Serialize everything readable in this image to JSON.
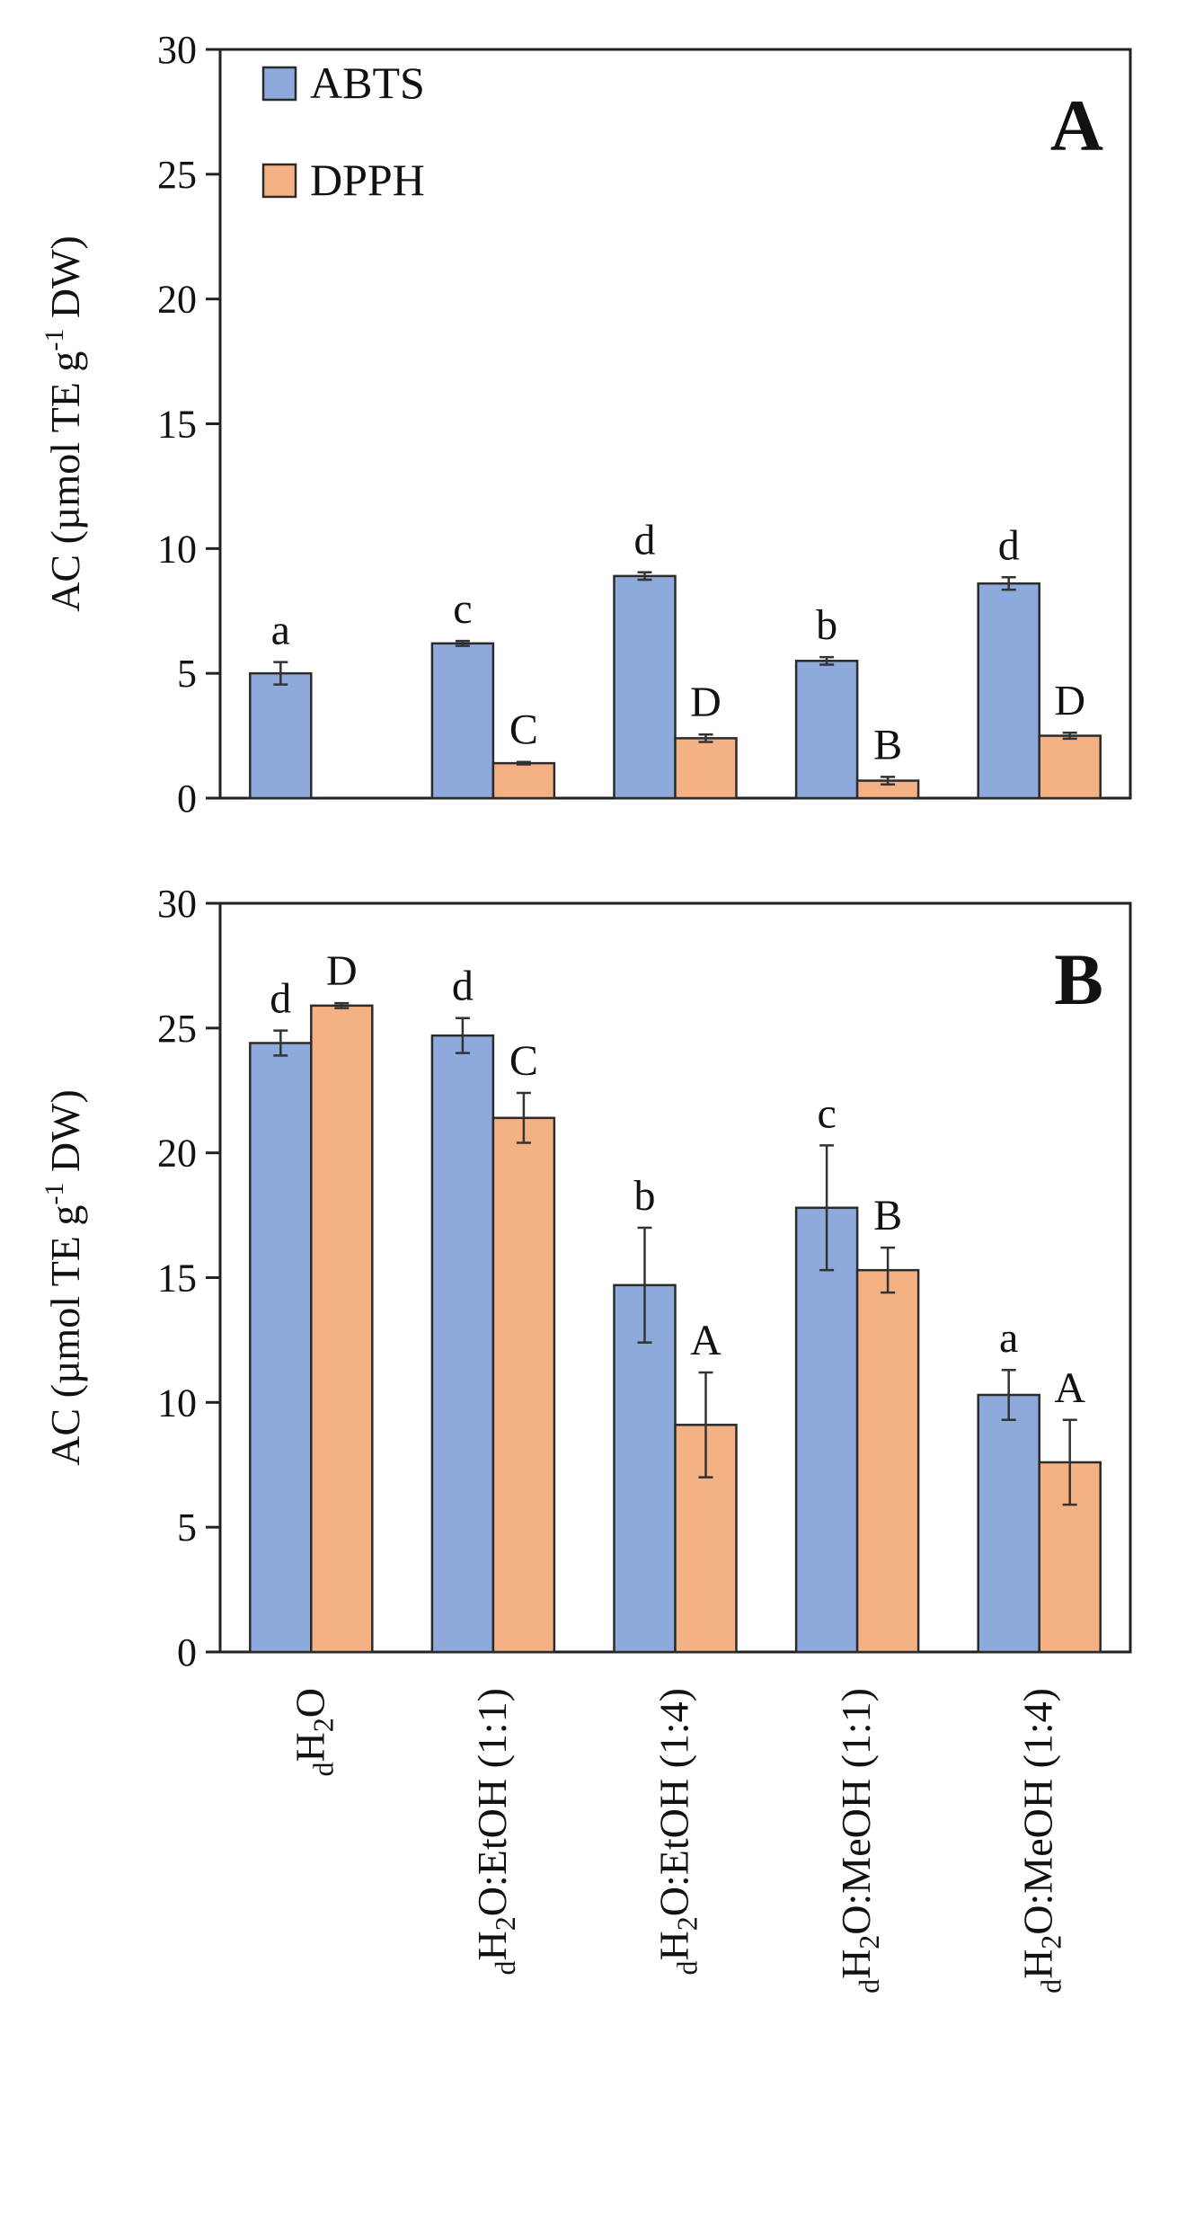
{
  "chart_data": [
    {
      "type": "bar",
      "panel_label": "A",
      "ylabel": "AC (µmol TE g-1 DW)",
      "ylabel_parts": {
        "pre": "AC (µmol TE g",
        "sup": "-1",
        "post": " DW)"
      },
      "ylim": [
        0,
        30
      ],
      "yticks": [
        "0",
        "5",
        "10",
        "15",
        "20",
        "25",
        "30"
      ],
      "categories": [
        "dH2O",
        "dH2O:EtOH (1:1)",
        "dH2O:EtOH (1:4)",
        "dH2O:MeOH (1:1)",
        "dH2O:MeOH (1:4)"
      ],
      "legend": [
        "ABTS",
        "DPPH"
      ],
      "legend_position": "top-left",
      "series": [
        {
          "name": "ABTS",
          "color": "#8EA9DB",
          "values": [
            5.0,
            6.2,
            8.9,
            5.5,
            8.6
          ],
          "errors": [
            0.45,
            0.1,
            0.15,
            0.15,
            0.25
          ],
          "letters": [
            "a",
            "c",
            "d",
            "b",
            "d"
          ]
        },
        {
          "name": "DPPH",
          "color": "#F4B183",
          "values": [
            null,
            1.4,
            2.4,
            0.7,
            2.5
          ],
          "errors": [
            0,
            0.05,
            0.15,
            0.15,
            0.12
          ],
          "letters": [
            "",
            "C",
            "D",
            "B",
            "D"
          ]
        }
      ]
    },
    {
      "type": "bar",
      "panel_label": "B",
      "ylabel": "AC (µmol TE g-1 DW)",
      "ylabel_parts": {
        "pre": "AC (µmol TE g",
        "sup": "-1",
        "post": " DW)"
      },
      "ylim": [
        0,
        30
      ],
      "yticks": [
        "0",
        "5",
        "10",
        "15",
        "20",
        "25",
        "30"
      ],
      "categories": [
        "dH2O",
        "dH2O:EtOH (1:1)",
        "dH2O:EtOH (1:4)",
        "dH2O:MeOH (1:1)",
        "dH2O:MeOH (1:4)"
      ],
      "category_parts": [
        {
          "sub1": "d",
          "main": "H",
          "sub2": "2",
          "rest": "O"
        },
        {
          "sub1": "d",
          "main": "H",
          "sub2": "2",
          "rest": "O:EtOH (1:1)"
        },
        {
          "sub1": "d",
          "main": "H",
          "sub2": "2",
          "rest": "O:EtOH (1:4)"
        },
        {
          "sub1": "d",
          "main": "H",
          "sub2": "2",
          "rest": "O:MeOH (1:1)"
        },
        {
          "sub1": "d",
          "main": "H",
          "sub2": "2",
          "rest": "O:MeOH (1:4)"
        }
      ],
      "series": [
        {
          "name": "ABTS",
          "color": "#8EA9DB",
          "values": [
            24.4,
            24.7,
            14.7,
            17.8,
            10.3
          ],
          "errors": [
            0.5,
            0.7,
            2.3,
            2.5,
            1.0
          ],
          "letters": [
            "d",
            "d",
            "b",
            "c",
            "a"
          ]
        },
        {
          "name": "DPPH",
          "color": "#F4B183",
          "values": [
            25.9,
            21.4,
            9.1,
            15.3,
            7.6
          ],
          "errors": [
            0.1,
            1.0,
            2.1,
            0.9,
            1.7
          ],
          "letters": [
            "D",
            "C",
            "A",
            "B",
            "A"
          ]
        }
      ]
    }
  ]
}
